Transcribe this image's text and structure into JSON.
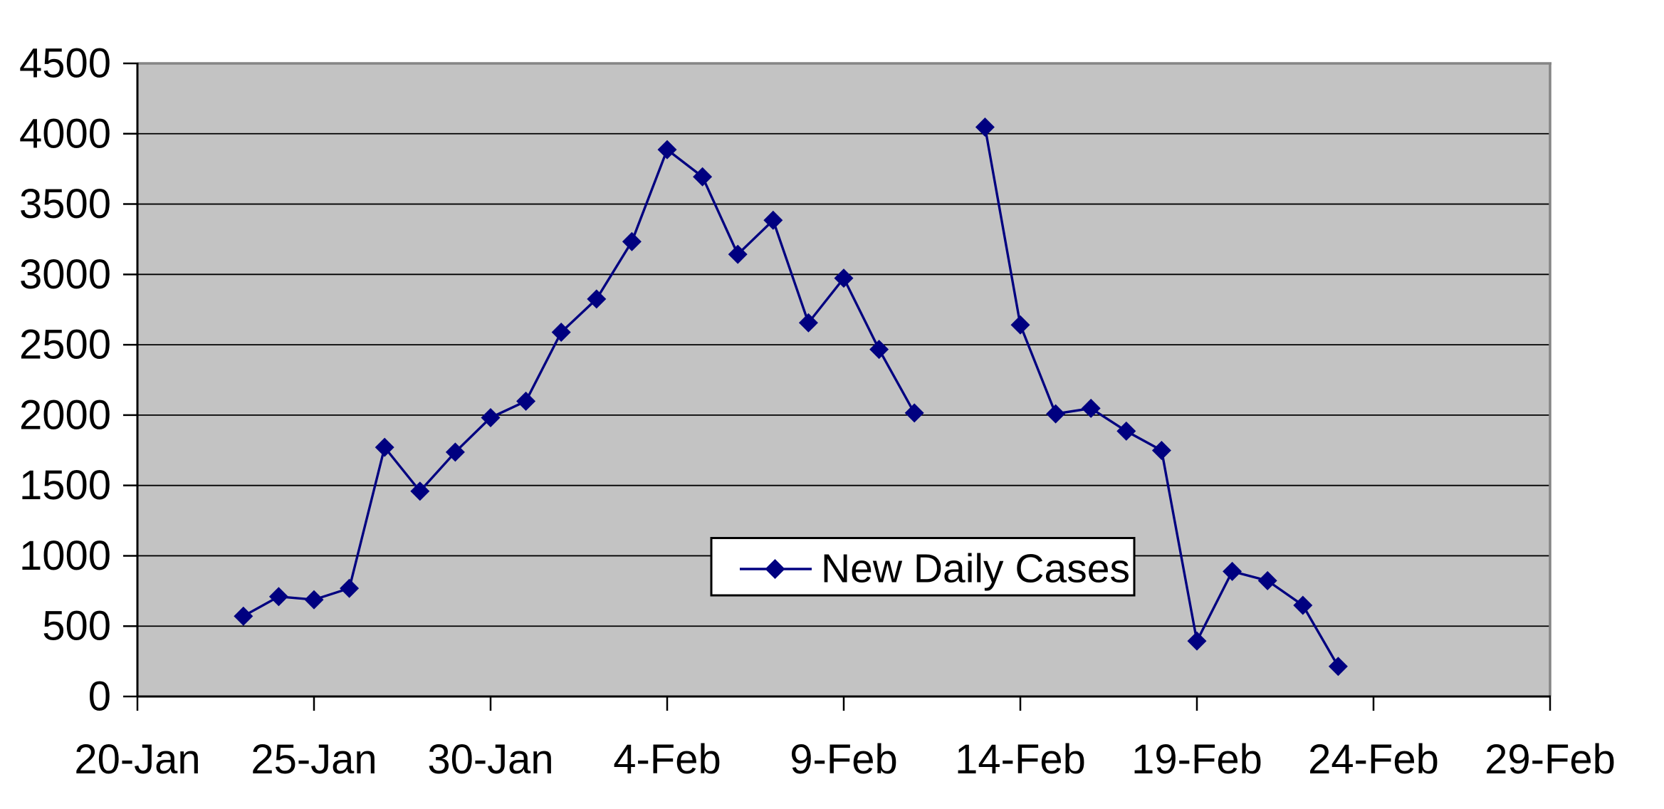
{
  "chart_data": {
    "type": "line",
    "title": "",
    "legend": "New Daily Cases",
    "xlabel": "",
    "ylabel": "",
    "ylim": [
      0,
      4500
    ],
    "y_tick_step": 500,
    "y_tick_labels": [
      "0",
      "500",
      "1000",
      "1500",
      "2000",
      "2500",
      "3000",
      "3500",
      "4000",
      "4500"
    ],
    "x_tick_labels": [
      "20-Jan",
      "25-Jan",
      "30-Jan",
      "4-Feb",
      "9-Feb",
      "14-Feb",
      "19-Feb",
      "24-Feb",
      "29-Feb"
    ],
    "x_axis_span_days": 40,
    "x_tick_every_days": 5,
    "grid": "horizontal gridlines every 500, on",
    "legend_position": "boxed, center of plot area",
    "plot_style": {
      "marker": "diamond",
      "line_color": "#000080",
      "marker_color": "#000080",
      "plot_background": "#c3c3c3",
      "gridline_color": "#000000",
      "plot_border_color": "#858585",
      "axis_color": "#000000",
      "legend_background": "#ffffff",
      "legend_border": "#000000",
      "page_background": "#ffffff"
    },
    "series": [
      {
        "name": "New Daily Cases",
        "gap_note": "12-Feb value omitted, line break in series",
        "points": [
          {
            "date": "23-Jan",
            "day_offset": 3,
            "value": 571
          },
          {
            "date": "24-Jan",
            "day_offset": 4,
            "value": 710
          },
          {
            "date": "25-Jan",
            "day_offset": 5,
            "value": 688
          },
          {
            "date": "26-Jan",
            "day_offset": 6,
            "value": 769
          },
          {
            "date": "27-Jan",
            "day_offset": 7,
            "value": 1771
          },
          {
            "date": "28-Jan",
            "day_offset": 8,
            "value": 1459
          },
          {
            "date": "29-Jan",
            "day_offset": 9,
            "value": 1737
          },
          {
            "date": "30-Jan",
            "day_offset": 10,
            "value": 1982
          },
          {
            "date": "31-Jan",
            "day_offset": 11,
            "value": 2099
          },
          {
            "date": "1-Feb",
            "day_offset": 12,
            "value": 2589
          },
          {
            "date": "2-Feb",
            "day_offset": 13,
            "value": 2825
          },
          {
            "date": "3-Feb",
            "day_offset": 14,
            "value": 3233
          },
          {
            "date": "4-Feb",
            "day_offset": 15,
            "value": 3887
          },
          {
            "date": "5-Feb",
            "day_offset": 16,
            "value": 3694
          },
          {
            "date": "6-Feb",
            "day_offset": 17,
            "value": 3143
          },
          {
            "date": "7-Feb",
            "day_offset": 18,
            "value": 3385
          },
          {
            "date": "8-Feb",
            "day_offset": 19,
            "value": 2656
          },
          {
            "date": "9-Feb",
            "day_offset": 20,
            "value": 2973
          },
          {
            "date": "10-Feb",
            "day_offset": 21,
            "value": 2467
          },
          {
            "date": "11-Feb",
            "day_offset": 22,
            "value": 2015
          },
          {
            "date": "12-Feb",
            "day_offset": 23,
            "value": null
          },
          {
            "date": "13-Feb",
            "day_offset": 24,
            "value": 4047
          },
          {
            "date": "14-Feb",
            "day_offset": 25,
            "value": 2641
          },
          {
            "date": "15-Feb",
            "day_offset": 26,
            "value": 2009
          },
          {
            "date": "16-Feb",
            "day_offset": 27,
            "value": 2048
          },
          {
            "date": "17-Feb",
            "day_offset": 28,
            "value": 1886
          },
          {
            "date": "18-Feb",
            "day_offset": 29,
            "value": 1749
          },
          {
            "date": "19-Feb",
            "day_offset": 30,
            "value": 394
          },
          {
            "date": "20-Feb",
            "day_offset": 31,
            "value": 889
          },
          {
            "date": "21-Feb",
            "day_offset": 32,
            "value": 823
          },
          {
            "date": "22-Feb",
            "day_offset": 33,
            "value": 648
          },
          {
            "date": "23-Feb",
            "day_offset": 34,
            "value": 214
          }
        ]
      }
    ]
  }
}
